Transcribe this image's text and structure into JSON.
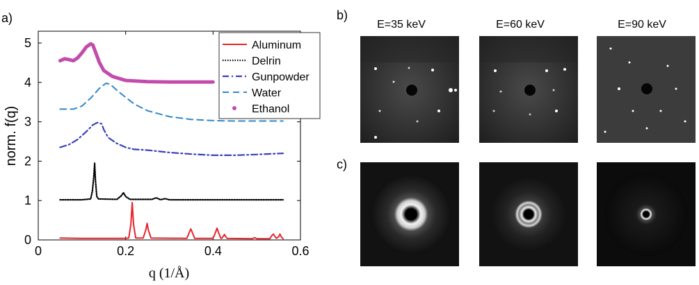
{
  "panels": {
    "a": "a)",
    "b": "b)",
    "c": "c)"
  },
  "energies": [
    "E=35 keV",
    "E=60 keV",
    "E=90 keV"
  ],
  "chart_data": {
    "type": "line",
    "xlabel": "q (1/Å)",
    "ylabel": "norm. f(q)",
    "xlim": [
      0,
      0.6
    ],
    "ylim": [
      0,
      5.3
    ],
    "xticks": [
      0,
      0.2,
      0.4,
      0.6
    ],
    "xtick_labels": [
      "0",
      "0.2",
      "0.4",
      "0.6"
    ],
    "yticks": [
      0,
      1,
      2,
      3,
      4,
      5
    ],
    "ytick_labels": [
      "0",
      "1",
      "2",
      "3",
      "4",
      "5"
    ],
    "legend_position": "top-right",
    "grid": false,
    "series": [
      {
        "name": "Aluminum",
        "color": "#e8232a",
        "style": "solid",
        "x": [
          0.05,
          0.1,
          0.15,
          0.2,
          0.207,
          0.212,
          0.215,
          0.218,
          0.223,
          0.24,
          0.246,
          0.249,
          0.252,
          0.258,
          0.34,
          0.346,
          0.349,
          0.352,
          0.358,
          0.4,
          0.406,
          0.409,
          0.412,
          0.418,
          0.42,
          0.424,
          0.426,
          0.428,
          0.432,
          0.49,
          0.495,
          0.5,
          0.53,
          0.535,
          0.538,
          0.541,
          0.545,
          0.55,
          0.553,
          0.556,
          0.56
        ],
        "values": [
          0.05,
          0.04,
          0.04,
          0.04,
          0.05,
          0.4,
          0.95,
          0.4,
          0.05,
          0.05,
          0.25,
          0.42,
          0.25,
          0.05,
          0.04,
          0.2,
          0.28,
          0.2,
          0.04,
          0.04,
          0.2,
          0.3,
          0.2,
          0.04,
          0.04,
          0.1,
          0.14,
          0.1,
          0.04,
          0.03,
          0.06,
          0.03,
          0.03,
          0.12,
          0.15,
          0.1,
          0.04,
          0.08,
          0.15,
          0.08,
          0.03
        ]
      },
      {
        "name": "Delrin",
        "color": "#000000",
        "style": "dotted",
        "x": [
          0.05,
          0.1,
          0.12,
          0.124,
          0.127,
          0.129,
          0.131,
          0.134,
          0.138,
          0.18,
          0.19,
          0.195,
          0.2,
          0.21,
          0.26,
          0.27,
          0.28,
          0.29,
          0.3,
          0.35,
          0.45,
          0.56
        ],
        "values": [
          1.02,
          1.02,
          1.04,
          1.25,
          1.6,
          1.95,
          1.5,
          1.1,
          1.04,
          1.03,
          1.12,
          1.2,
          1.1,
          1.03,
          1.03,
          1.07,
          1.02,
          1.05,
          1.02,
          1.02,
          1.02,
          1.02
        ]
      },
      {
        "name": "Gunpowder",
        "color": "#3a3dbd",
        "style": "dashdot",
        "x": [
          0.05,
          0.07,
          0.09,
          0.11,
          0.125,
          0.135,
          0.145,
          0.15,
          0.16,
          0.18,
          0.2,
          0.22,
          0.25,
          0.3,
          0.35,
          0.4,
          0.45,
          0.5,
          0.56
        ],
        "values": [
          2.35,
          2.42,
          2.55,
          2.75,
          2.92,
          2.98,
          2.95,
          2.8,
          2.6,
          2.45,
          2.35,
          2.3,
          2.28,
          2.22,
          2.18,
          2.15,
          2.15,
          2.17,
          2.2
        ]
      },
      {
        "name": "Water",
        "color": "#2f86c8",
        "style": "dashed",
        "x": [
          0.05,
          0.08,
          0.1,
          0.12,
          0.14,
          0.155,
          0.165,
          0.18,
          0.2,
          0.22,
          0.25,
          0.3,
          0.35,
          0.4,
          0.45,
          0.5,
          0.56
        ],
        "values": [
          3.32,
          3.32,
          3.4,
          3.6,
          3.85,
          3.98,
          3.95,
          3.8,
          3.62,
          3.45,
          3.28,
          3.13,
          3.06,
          3.03,
          3.02,
          3.02,
          3.02
        ]
      },
      {
        "name": "Ethanol",
        "color": "#c34bab",
        "style": "thick",
        "x": [
          0.05,
          0.06,
          0.07,
          0.08,
          0.09,
          0.1,
          0.11,
          0.12,
          0.125,
          0.13,
          0.14,
          0.15,
          0.17,
          0.2,
          0.25,
          0.3,
          0.35,
          0.4
        ],
        "values": [
          4.55,
          4.6,
          4.58,
          4.55,
          4.62,
          4.75,
          4.9,
          4.98,
          4.95,
          4.8,
          4.5,
          4.3,
          4.15,
          4.05,
          4.02,
          4.01,
          4.01,
          4.01
        ]
      }
    ]
  }
}
